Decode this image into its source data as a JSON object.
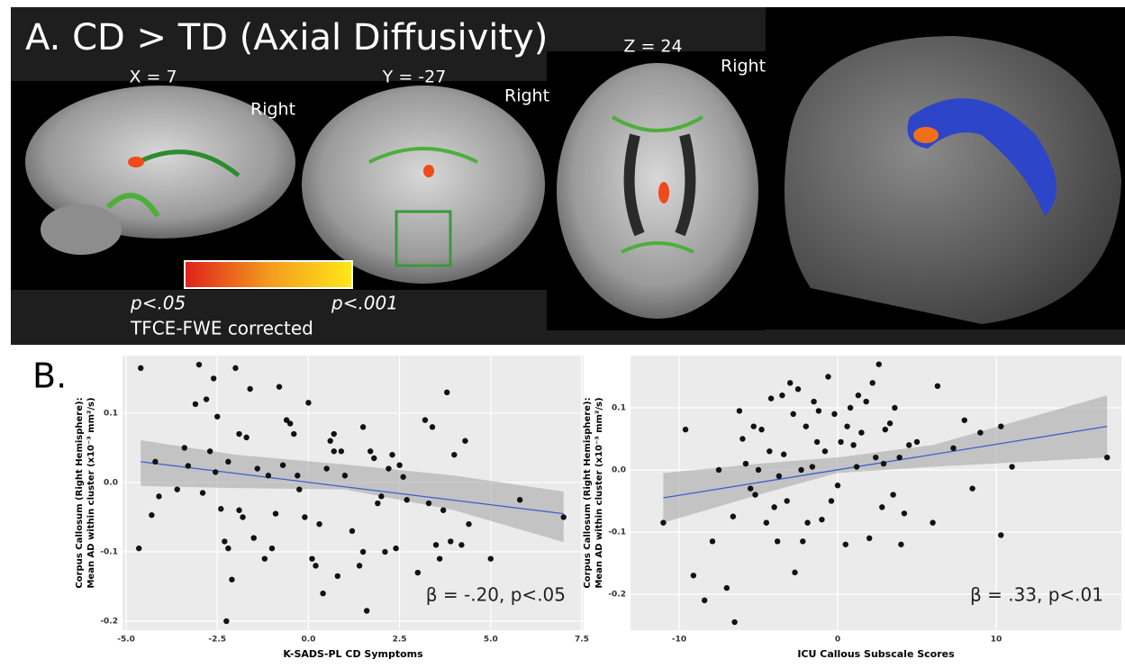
{
  "panel_a": {
    "title": "A. CD > TD (Axial Diffusivity)",
    "x_slice": "X = 7",
    "y_slice": "Y = -27",
    "z_slice": "Z = 24",
    "right_labels": [
      "Right",
      "Right",
      "Right"
    ],
    "p_low": "p<.05",
    "p_high": "p<.001",
    "correction": "TFCE-FWE corrected"
  },
  "panel_b": {
    "label": "B."
  },
  "chart_data": [
    {
      "type": "scatter",
      "xlabel": "K-SADS-PL CD Symptoms",
      "ylabel": [
        "Corpus Callosum (Right Hemisphere):",
        "Mean AD within cluster (x10⁻³ mm²/s)"
      ],
      "annotation": "β = -.20, p<.05",
      "xlim": [
        -5.1,
        7.55
      ],
      "ylim": [
        -0.213,
        0.183
      ],
      "xticks": [
        {
          "value": -5,
          "label": "-5.0"
        },
        -2.5,
        {
          "value": 0,
          "label": "0.0"
        },
        2.5,
        {
          "value": 5,
          "label": "5.0"
        },
        7.5
      ],
      "yticks": [
        -0.2,
        -0.1,
        {
          "value": 0,
          "label": "0.0"
        },
        0.1
      ],
      "grid": true,
      "color": "#111111",
      "fit_color": "#3a5fcd",
      "fit": {
        "x": [
          -4.6,
          7
        ],
        "y": [
          0.03,
          -0.045
        ]
      },
      "ci": {
        "x": [
          -4.6,
          -2,
          1,
          4,
          7
        ],
        "upper": [
          0.061,
          0.04,
          0.026,
          0.01,
          -0.013
        ],
        "lower": [
          -0.005,
          -0.008,
          -0.01,
          -0.04,
          -0.086
        ]
      },
      "x": [
        -4.6,
        -4.65,
        -4.3,
        -4.2,
        -4.1,
        -3.4,
        -3.3,
        -3.1,
        -3.0,
        -2.9,
        -2.8,
        -2.7,
        -2.6,
        -2.5,
        -2.55,
        -2.4,
        -2.3,
        -2.2,
        -2.25,
        -2.1,
        -2.0,
        -1.9,
        -1.8,
        -1.7,
        -1.6,
        -1.5,
        -1.4,
        -1.2,
        -1.1,
        -1.0,
        -0.9,
        -0.8,
        -0.7,
        -0.6,
        -0.5,
        -0.4,
        -0.3,
        -0.25,
        -0.1,
        0.0,
        0.1,
        0.2,
        0.3,
        0.4,
        0.5,
        0.6,
        0.7,
        0.8,
        0.9,
        1.0,
        1.2,
        1.5,
        1.5,
        1.6,
        1.7,
        1.8,
        1.9,
        2.0,
        2.1,
        2.2,
        2.4,
        2.5,
        2.6,
        2.7,
        3.0,
        3.2,
        3.4,
        3.5,
        3.6,
        3.7,
        3.8,
        3.9,
        4.0,
        4.3,
        4.4,
        4.2,
        5.0,
        5.8,
        7.0,
        -1.9,
        0.7,
        2.3,
        3.3,
        -3.6,
        -2.2,
        1.4
      ],
      "y": [
        0.165,
        -0.095,
        -0.047,
        0.03,
        -0.02,
        0.05,
        0.024,
        0.113,
        0.17,
        -0.015,
        0.12,
        0.045,
        0.15,
        0.095,
        0.015,
        -0.038,
        -0.085,
        -0.095,
        -0.2,
        -0.14,
        0.165,
        0.07,
        -0.05,
        0.065,
        0.135,
        -0.08,
        0.02,
        -0.11,
        0.01,
        -0.095,
        -0.045,
        0.138,
        0.025,
        0.09,
        0.085,
        0.07,
        0.01,
        -0.01,
        -0.05,
        0.115,
        -0.11,
        -0.12,
        -0.06,
        -0.16,
        0.02,
        0.06,
        0.045,
        -0.135,
        0.045,
        0.01,
        -0.07,
        0.08,
        -0.1,
        -0.185,
        0.045,
        0.035,
        -0.03,
        -0.02,
        -0.1,
        0.02,
        -0.095,
        0.025,
        0.008,
        -0.025,
        -0.13,
        0.09,
        0.08,
        -0.09,
        -0.11,
        -0.04,
        0.13,
        -0.085,
        0.04,
        0.06,
        -0.06,
        -0.09,
        -0.11,
        -0.025,
        -0.05,
        -0.04,
        0.07,
        0.04,
        -0.03,
        -0.01,
        0.03,
        -0.12
      ]
    },
    {
      "type": "scatter",
      "xlabel": "ICU Callous Subscale Scores",
      "ylabel": [
        "Corpus Callosum (Right Hemisphere):",
        "Mean AD within cluster (x10⁻³ mm²/s)"
      ],
      "annotation": "β = .33, p<.01",
      "xlim": [
        -13.07,
        17.9
      ],
      "ylim": [
        -0.258,
        0.184
      ],
      "xticks": [
        -10,
        0,
        10
      ],
      "yticks": [
        -0.2,
        -0.1,
        {
          "value": 0,
          "label": "0.0"
        },
        0.1
      ],
      "grid": true,
      "color": "#111111",
      "fit_color": "#3a5fcd",
      "fit": {
        "x": [
          -11,
          17
        ],
        "y": [
          -0.045,
          0.07
        ]
      },
      "ci": {
        "x": [
          -11,
          -5,
          0,
          6,
          17
        ],
        "upper": [
          -0.005,
          0.01,
          0.02,
          0.04,
          0.12
        ],
        "lower": [
          -0.085,
          -0.04,
          -0.005,
          0.005,
          0.02
        ]
      },
      "x": [
        -11,
        -9.6,
        -9.1,
        -8.4,
        -7.9,
        -7,
        -6.5,
        -6.6,
        -6.2,
        -6.0,
        -5.8,
        -5.5,
        -5.3,
        -5.0,
        -4.8,
        -4.5,
        -4.3,
        -4.2,
        -4.0,
        -3.8,
        -3.5,
        -3.4,
        -3.2,
        -3.0,
        -2.8,
        -2.7,
        -2.5,
        -2.3,
        -2.0,
        -1.9,
        -1.6,
        -1.5,
        -1.3,
        -1.0,
        -0.8,
        -0.6,
        -0.4,
        -0.2,
        0.0,
        0.2,
        0.5,
        0.8,
        1.0,
        1.2,
        1.5,
        1.8,
        2.0,
        2.2,
        2.4,
        2.6,
        2.8,
        3.0,
        3.3,
        3.5,
        3.6,
        3.9,
        4.0,
        4.2,
        5.0,
        6.0,
        6.3,
        7.3,
        8.0,
        8.5,
        9.0,
        10.3,
        10.3,
        11,
        17,
        -7.5,
        -3.7,
        1.3,
        2.9,
        -1.2,
        0.6,
        -2.2,
        4.5,
        -5.2
      ],
      "y": [
        -0.085,
        0.065,
        -0.17,
        -0.21,
        -0.115,
        -0.19,
        -0.245,
        -0.075,
        0.095,
        0.05,
        0.01,
        -0.03,
        0.07,
        0.0,
        0.065,
        -0.085,
        0.03,
        0.115,
        -0.06,
        -0.115,
        0.12,
        0.025,
        -0.05,
        0.14,
        0.09,
        -0.165,
        0.13,
        0.0,
        0.07,
        -0.085,
        0.005,
        0.11,
        0.045,
        -0.08,
        0.03,
        0.15,
        -0.05,
        0.09,
        -0.025,
        0.045,
        -0.12,
        0.1,
        0.04,
        0.005,
        0.06,
        0.11,
        -0.11,
        0.14,
        0.02,
        0.17,
        -0.06,
        0.065,
        0.075,
        -0.04,
        0.1,
        0.02,
        -0.12,
        -0.07,
        0.045,
        -0.085,
        0.135,
        0.035,
        0.08,
        -0.03,
        0.06,
        0.07,
        -0.105,
        0.005,
        0.02,
        0.0,
        -0.01,
        0.12,
        0.01,
        0.095,
        0.07,
        -0.115,
        0.04,
        -0.04
      ]
    }
  ]
}
